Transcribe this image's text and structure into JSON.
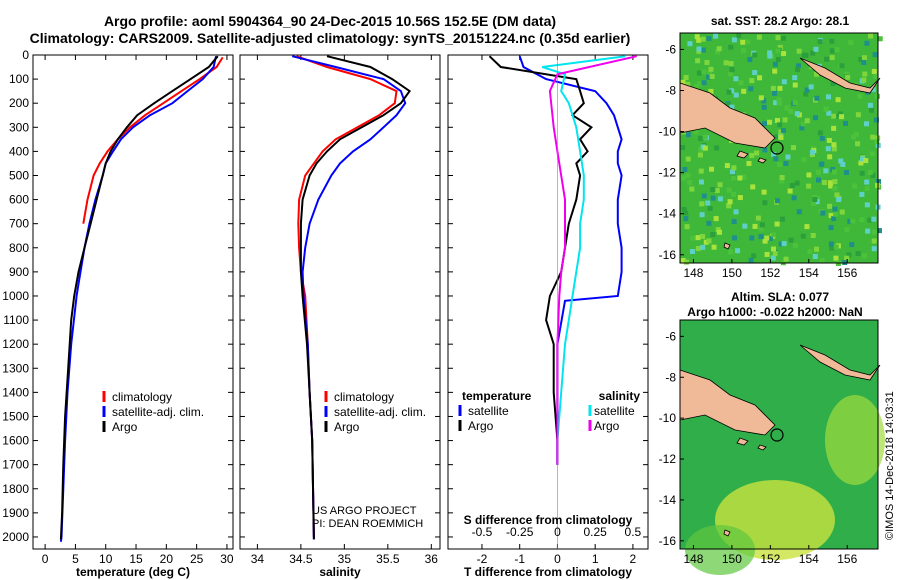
{
  "header": {
    "line1": "Argo profile: aoml 5904364_90 24-Dec-2015 10.56S 152.5E (DM data)",
    "line2": "Climatology: CARS2009. Satellite-adjusted climatology: synTS_20151224.nc (0.35d earlier)"
  },
  "credit": "©IMOS 14-Dec-2018 14:03:31",
  "colors": {
    "climatology": "#ff0000",
    "satellite": "#0000ff",
    "argo": "#000000",
    "salinity_sat": "#00e5ee",
    "salinity_argo": "#ee00ee"
  },
  "chart_data": [
    {
      "type": "line",
      "title": "",
      "xlabel": "temperature (deg C)",
      "ylabel": "",
      "xlim": [
        -2,
        31
      ],
      "ylim": [
        2050,
        0
      ],
      "xticks": [
        "0",
        "5",
        "10",
        "15",
        "20",
        "25",
        "30"
      ],
      "yticks": [
        "0",
        "100",
        "200",
        "300",
        "400",
        "500",
        "600",
        "700",
        "800",
        "900",
        "1000",
        "1100",
        "1200",
        "1300",
        "1400",
        "1500",
        "1600",
        "1700",
        "1800",
        "1900",
        "2000"
      ],
      "legend": [
        "climatology",
        "satellite-adj. clim.",
        "Argo"
      ],
      "series": [
        {
          "name": "climatology",
          "color": "#ff0000",
          "x": [
            29.3,
            28.3,
            25.5,
            22.5,
            19.5,
            16.5,
            14.0,
            12.0,
            10.3,
            9.0,
            8.0,
            7.0,
            6.3
          ],
          "y": [
            10,
            50,
            100,
            150,
            200,
            250,
            300,
            350,
            400,
            450,
            500,
            600,
            700
          ]
        },
        {
          "name": "satellite-adj. clim.",
          "color": "#0000ff",
          "x": [
            28.2,
            27.8,
            26.0,
            23.5,
            21.0,
            17.3,
            14.5,
            12.5,
            11.2,
            10.0,
            9.5,
            8.3,
            7.3,
            6.5,
            5.5,
            5.2,
            4.3,
            3.7,
            3.3,
            3.0,
            2.7,
            2.6
          ],
          "y": [
            5,
            50,
            100,
            150,
            200,
            250,
            300,
            350,
            400,
            450,
            500,
            600,
            700,
            800,
            950,
            1000,
            1200,
            1400,
            1600,
            1800,
            2000,
            2020
          ]
        },
        {
          "name": "Argo",
          "color": "#000000",
          "x": [
            28.5,
            27.0,
            24.0,
            21.0,
            18.0,
            15.2,
            13.5,
            12.0,
            10.8,
            10.0,
            9.5,
            8.5,
            7.5,
            6.5,
            5.5,
            4.8,
            4.3,
            3.8,
            3.3,
            3.0,
            2.8,
            2.6
          ],
          "y": [
            5,
            50,
            100,
            150,
            200,
            250,
            300,
            350,
            400,
            450,
            500,
            600,
            700,
            800,
            900,
            1000,
            1100,
            1300,
            1500,
            1700,
            1900,
            2010
          ]
        }
      ]
    },
    {
      "type": "line",
      "xlabel": "salinity",
      "xlim": [
        33.8,
        36.1
      ],
      "ylim": [
        2050,
        0
      ],
      "xticks": [
        "34",
        "34.5",
        "35",
        "35.5",
        "36"
      ],
      "legend": [
        "climatology",
        "satellite-adj. clim.",
        "Argo"
      ],
      "annotation": [
        "US ARGO PROJECT",
        "PI: DEAN ROEMMICH"
      ],
      "series": [
        {
          "name": "climatology",
          "color": "#ff0000",
          "x": [
            34.45,
            34.8,
            35.3,
            35.6,
            35.58,
            35.4,
            35.15,
            34.9,
            34.75,
            34.65,
            34.55,
            34.48,
            34.47,
            34.48,
            34.5,
            34.55,
            34.58,
            34.6,
            34.63,
            34.65
          ],
          "y": [
            5,
            50,
            100,
            150,
            200,
            250,
            300,
            350,
            400,
            450,
            500,
            600,
            700,
            800,
            900,
            1000,
            1200,
            1400,
            1600,
            2000
          ]
        },
        {
          "name": "satellite-adj. clim.",
          "color": "#0000ff",
          "x": [
            34.4,
            34.9,
            35.45,
            35.65,
            35.7,
            35.6,
            35.45,
            35.3,
            35.1,
            34.95,
            34.85,
            34.7,
            34.6,
            34.55,
            34.52,
            34.53,
            34.58,
            34.6,
            34.63,
            34.65
          ],
          "y": [
            5,
            50,
            100,
            150,
            200,
            250,
            300,
            350,
            400,
            450,
            500,
            600,
            700,
            800,
            900,
            1000,
            1200,
            1400,
            1600,
            2010
          ]
        },
        {
          "name": "Argo",
          "color": "#000000",
          "x": [
            34.8,
            35.3,
            35.55,
            35.75,
            35.65,
            35.45,
            35.2,
            34.95,
            34.8,
            34.68,
            34.6,
            34.52,
            34.5,
            34.5,
            34.5,
            34.52,
            34.57,
            34.6,
            34.63,
            34.65
          ],
          "y": [
            5,
            50,
            100,
            150,
            200,
            250,
            300,
            350,
            400,
            450,
            500,
            600,
            700,
            800,
            900,
            1000,
            1200,
            1400,
            1600,
            2010
          ]
        }
      ]
    },
    {
      "type": "line",
      "xlabel": "T difference from climatology",
      "xlabel2": "S difference from climatology",
      "xlim": [
        -2.9,
        2.4
      ],
      "ylim": [
        2050,
        0
      ],
      "xticks": [
        "-2",
        "-1",
        "0",
        "1",
        "2"
      ],
      "xticks2": [
        "-0.5",
        "-0.25",
        "0",
        "0.25",
        "0.5"
      ],
      "legend_left_title": "temperature",
      "legend_right_title": "salinity",
      "legend_left": [
        "satellite",
        "Argo"
      ],
      "legend_right": [
        "satellite",
        "Argo"
      ],
      "series": [
        {
          "name": "temperature satellite",
          "color": "#0000ff",
          "x": [
            -1.0,
            -0.9,
            -0.3,
            1.0,
            1.3,
            1.5,
            1.6,
            1.7,
            1.6,
            1.6,
            1.7,
            1.6,
            1.6,
            1.7,
            1.7,
            1.6,
            0.2,
            0.0,
            0.0,
            0.0,
            0.0
          ],
          "y": [
            5,
            50,
            100,
            150,
            200,
            250,
            300,
            350,
            400,
            450,
            500,
            600,
            700,
            800,
            900,
            1000,
            1020,
            1200,
            1400,
            1600,
            1700
          ]
        },
        {
          "name": "temperature Argo",
          "color": "#000000",
          "x": [
            -1.8,
            -1.5,
            0.5,
            0.6,
            0.7,
            0.4,
            0.9,
            0.6,
            0.8,
            0.5,
            0.6,
            0.5,
            0.3,
            0.2,
            0.1,
            -0.2,
            -0.3,
            -0.1,
            -0.1,
            0.0,
            0.0
          ],
          "y": [
            5,
            50,
            100,
            150,
            200,
            250,
            300,
            350,
            400,
            450,
            500,
            600,
            700,
            800,
            900,
            1000,
            1100,
            1200,
            1400,
            1600,
            1700
          ]
        },
        {
          "name": "salinity satellite",
          "color": "#00e5ee",
          "x": [
            1.8,
            -0.4,
            0.2,
            0.1,
            0.3,
            0.5,
            0.6,
            0.7,
            0.7,
            0.6,
            0.6,
            0.5,
            0.4,
            0.3,
            0.2,
            0.1,
            0.0,
            0.0
          ],
          "y": [
            5,
            50,
            80,
            150,
            200,
            300,
            400,
            500,
            600,
            700,
            800,
            900,
            1000,
            1100,
            1200,
            1400,
            1600,
            1700
          ]
        },
        {
          "name": "salinity Argo",
          "color": "#ee00ee",
          "x": [
            2.1,
            0.0,
            -0.2,
            -0.1,
            0.0,
            0.1,
            0.2,
            0.2,
            0.1,
            0.05,
            0.0,
            0.0
          ],
          "y": [
            5,
            80,
            150,
            300,
            400,
            500,
            600,
            800,
            900,
            1000,
            1200,
            1700
          ]
        }
      ]
    }
  ],
  "maps": {
    "sst": {
      "title": "sat. SST: 28.2 Argo: 28.1",
      "xticks": [
        "148",
        "150",
        "152",
        "154",
        "156"
      ],
      "yticks": [
        "-6",
        "-8",
        "-10",
        "-12",
        "-14",
        "-16"
      ]
    },
    "sla": {
      "title1": "Altim. SLA: 0.077",
      "title2": "Argo h1000: -0.022 h2000: NaN",
      "xticks": [
        "148",
        "150",
        "152",
        "154",
        "156"
      ],
      "yticks": [
        "-6",
        "-8",
        "-10",
        "-12",
        "-14",
        "-16"
      ]
    }
  }
}
